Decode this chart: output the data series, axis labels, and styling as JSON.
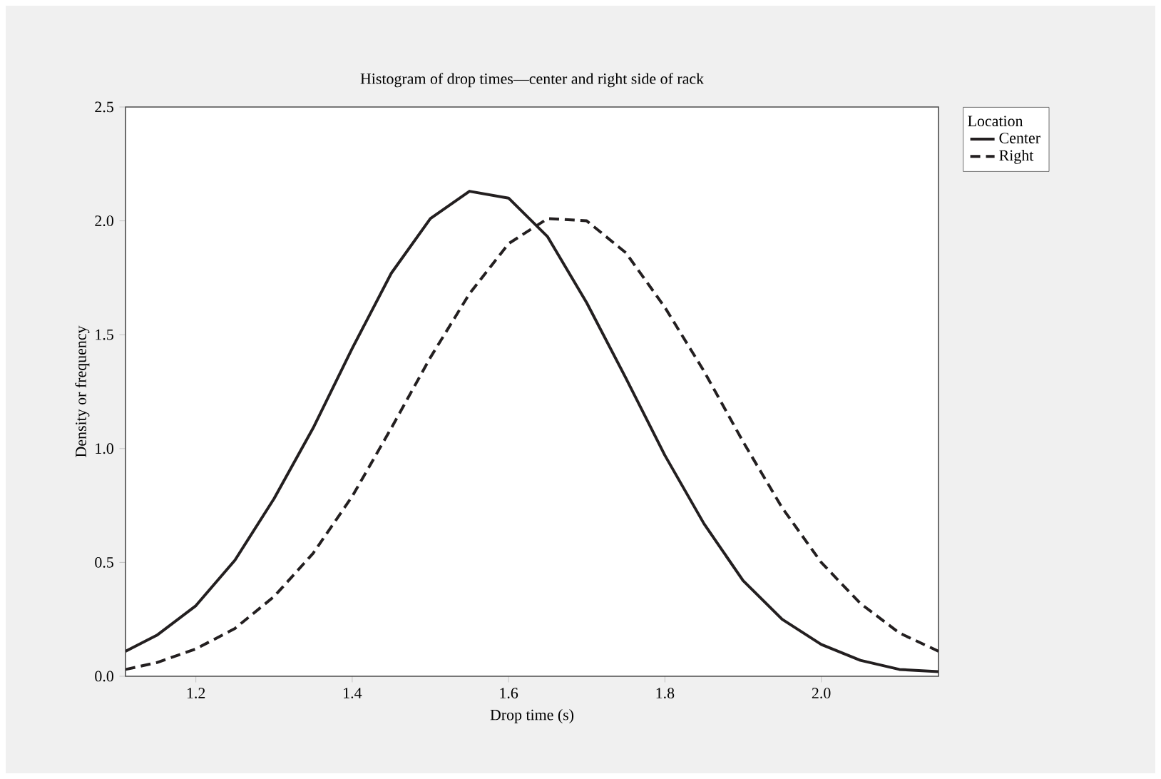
{
  "chart_data": {
    "type": "line",
    "title": "Histogram of drop times—center and right side of rack",
    "xlabel": "Drop time (s)",
    "ylabel": "Density or frequency",
    "legend_title": "Location",
    "legend": "right",
    "marker": "none",
    "grid": false,
    "x": [
      1.11,
      1.15,
      1.2,
      1.25,
      1.3,
      1.35,
      1.4,
      1.45,
      1.5,
      1.55,
      1.6,
      1.65,
      1.7,
      1.75,
      1.8,
      1.85,
      1.9,
      1.95,
      2.0,
      2.05,
      2.1,
      2.15
    ],
    "series": [
      {
        "name": "Center",
        "color": "#231f20",
        "line_style": "solid",
        "values": [
          0.11,
          0.18,
          0.31,
          0.51,
          0.78,
          1.09,
          1.44,
          1.77,
          2.01,
          2.13,
          2.1,
          1.93,
          1.64,
          1.31,
          0.97,
          0.67,
          0.42,
          0.25,
          0.14,
          0.07,
          0.03,
          0.02
        ]
      },
      {
        "name": "Right",
        "color": "#231f20",
        "line_style": "dashed",
        "values": [
          0.03,
          0.06,
          0.12,
          0.21,
          0.35,
          0.54,
          0.79,
          1.09,
          1.4,
          1.68,
          1.9,
          2.01,
          2.0,
          1.86,
          1.62,
          1.34,
          1.03,
          0.74,
          0.5,
          0.32,
          0.19,
          0.11
        ]
      }
    ],
    "xlim": [
      1.11,
      2.15
    ],
    "ylim": [
      0,
      2.5
    ],
    "xticks": [
      {
        "value": 1.2,
        "label": "1.2"
      },
      {
        "value": 1.4,
        "label": "1.4"
      },
      {
        "value": 1.6,
        "label": "1.6"
      },
      {
        "value": 1.8,
        "label": "1.8"
      },
      {
        "value": 2.0,
        "label": "2.0"
      }
    ],
    "yticks": [
      {
        "value": 0,
        "label": "0.0"
      },
      {
        "value": 0.5,
        "label": "0.5"
      },
      {
        "value": 1.0,
        "label": "1.0"
      },
      {
        "value": 1.5,
        "label": "1.5"
      },
      {
        "value": 2.0,
        "label": "2.0"
      },
      {
        "value": 2.5,
        "label": "2.5"
      }
    ]
  }
}
